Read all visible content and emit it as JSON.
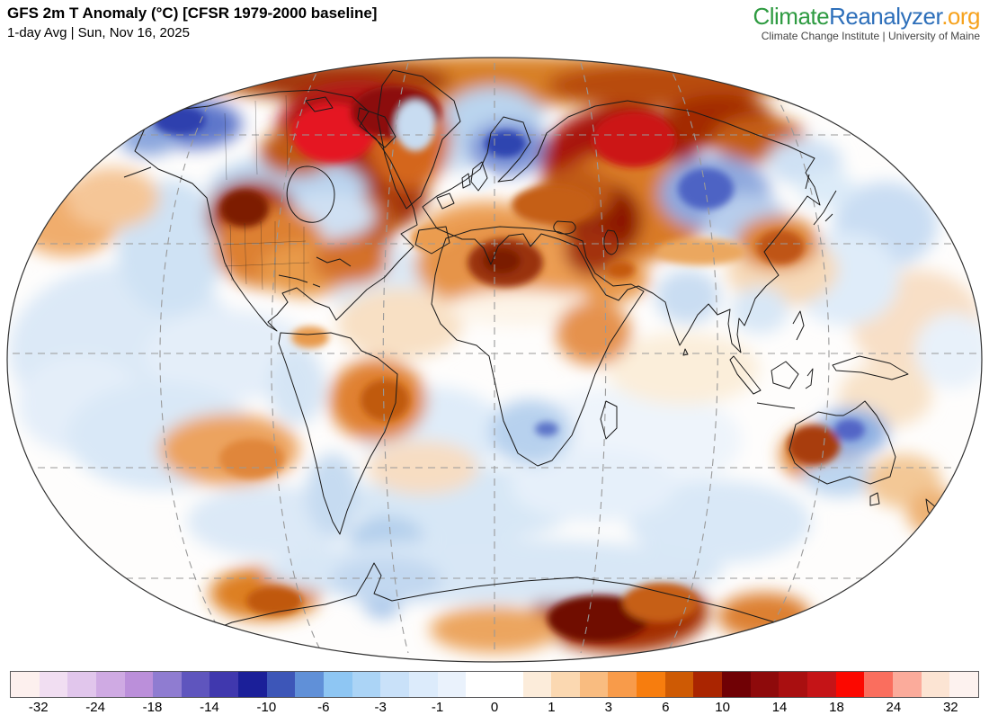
{
  "header": {
    "title": "GFS 2m T Anomaly (°C) [CFSR 1979-2000 baseline]",
    "subtitle": "1-day Avg | Sun, Nov 16, 2025"
  },
  "logo": {
    "part1": "Climate",
    "part2": "Reanalyzer",
    "part3": ".org",
    "color1": "#2e9b41",
    "color2": "#2d6fba",
    "color3": "#f6a21d",
    "tagline": "Climate Change Institute | University of Maine"
  },
  "colorbar": {
    "units": "°C",
    "ticks": [
      "-32",
      "-24",
      "-18",
      "-14",
      "-10",
      "-6",
      "-3",
      "-1",
      "0",
      "1",
      "3",
      "6",
      "10",
      "14",
      "18",
      "24",
      "32"
    ],
    "cells": [
      "#fdf0ee",
      "#f1def2",
      "#e1c6ec",
      "#cfaae3",
      "#bb8fda",
      "#8f7cd1",
      "#5f55be",
      "#4038ae",
      "#1b1f99",
      "#3d56b8",
      "#6090d8",
      "#8ec6f3",
      "#abd4f6",
      "#c9e1f9",
      "#dcebfb",
      "#eaf2fc",
      "#ffffff",
      "#ffffff",
      "#fcecda",
      "#fbd8b1",
      "#f9bc80",
      "#f89b4a",
      "#f77d0e",
      "#ce5a04",
      "#aa2501",
      "#700105",
      "#8e0a0b",
      "#a90f10",
      "#c51417",
      "#fc0800",
      "#fa6e5e",
      "#fbab9b",
      "#fce4d3",
      "#fdf2ef"
    ]
  },
  "map": {
    "grid_color": "#999999",
    "coast_color": "#1a1a1a",
    "parallels": [
      90,
      211,
      333,
      460,
      583
    ],
    "meridians": [
      {
        "xe": 550,
        "xt": 550
      },
      {
        "xe": 417,
        "xt": 454
      },
      {
        "xe": 283,
        "xt": 358
      },
      {
        "xe": 150,
        "xt": 262
      },
      {
        "xe": 683,
        "xt": 646
      },
      {
        "xe": 817,
        "xt": 742
      },
      {
        "xe": 950,
        "xt": 838
      }
    ],
    "blobs_soft": [
      [
        140,
        330,
        130,
        95,
        "#dce9f7"
      ],
      [
        90,
        390,
        70,
        55,
        "#e4eef9"
      ],
      [
        190,
        215,
        60,
        75,
        "#cfe2f4"
      ],
      [
        75,
        185,
        58,
        40,
        "#f0ad6d"
      ],
      [
        125,
        160,
        52,
        34,
        "#f5c697"
      ],
      [
        255,
        335,
        95,
        50,
        "#e4eef9"
      ],
      [
        180,
        425,
        105,
        60,
        "#d9e8f7"
      ],
      [
        420,
        250,
        62,
        40,
        "#dce9f6"
      ],
      [
        445,
        300,
        70,
        40,
        "#f8e0c4"
      ],
      [
        505,
        95,
        45,
        35,
        "#c8ddf2"
      ],
      [
        548,
        60,
        60,
        30,
        "#cfe2f5"
      ],
      [
        700,
        430,
        125,
        60,
        "#eef4fb"
      ],
      [
        760,
        350,
        85,
        40,
        "#fbeeda"
      ],
      [
        1020,
        300,
        72,
        60,
        "#f8dfc6"
      ],
      [
        985,
        190,
        58,
        48,
        "#c9ddf3"
      ],
      [
        940,
        250,
        60,
        52,
        "#dfecf9"
      ],
      [
        1060,
        330,
        42,
        42,
        "#e8f1fa"
      ],
      [
        870,
        240,
        62,
        40,
        "#f6d9b8"
      ],
      [
        480,
        420,
        82,
        50,
        "#dfecf9"
      ],
      [
        520,
        500,
        125,
        42,
        "#d7e7f6"
      ],
      [
        300,
        520,
        92,
        40,
        "#dce9f7"
      ],
      [
        800,
        520,
        102,
        46,
        "#d9e8f7"
      ],
      [
        660,
        480,
        92,
        40,
        "#e6f0fa"
      ],
      [
        985,
        380,
        52,
        36,
        "#f8e2c8"
      ],
      [
        560,
        30,
        345,
        28,
        "#d88027"
      ],
      [
        380,
        30,
        122,
        22,
        "#a33708"
      ],
      [
        730,
        35,
        122,
        26,
        "#b84c0e"
      ],
      [
        548,
        75,
        56,
        38,
        "#bad4ee"
      ],
      [
        395,
        85,
        88,
        56,
        "#b31616"
      ],
      [
        430,
        150,
        46,
        46,
        "#a33008"
      ],
      [
        405,
        190,
        36,
        36,
        "#c05a16"
      ],
      [
        215,
        78,
        54,
        27,
        "#5d76ca"
      ],
      [
        165,
        95,
        32,
        18,
        "#8aa6dd"
      ],
      [
        320,
        150,
        88,
        36,
        "#b9d3ee"
      ],
      [
        365,
        180,
        52,
        26,
        "#cfe0f3"
      ],
      [
        280,
        180,
        50,
        40,
        "#a93508"
      ],
      [
        300,
        215,
        62,
        46,
        "#dd8030"
      ],
      [
        340,
        240,
        52,
        30,
        "#e89a4a"
      ],
      [
        390,
        230,
        42,
        26,
        "#d4712a"
      ],
      [
        455,
        95,
        46,
        56,
        "#d4661b"
      ],
      [
        330,
        110,
        42,
        26,
        "#c05a14"
      ],
      [
        565,
        105,
        44,
        30,
        "#7b93d6"
      ],
      [
        540,
        200,
        72,
        36,
        "#eda159"
      ],
      [
        560,
        235,
        98,
        50,
        "#e6944a"
      ],
      [
        630,
        230,
        52,
        28,
        "#ec9e52"
      ],
      [
        580,
        282,
        82,
        20,
        "#fdf4e8"
      ],
      [
        660,
        310,
        42,
        36,
        "#e5924d"
      ],
      [
        680,
        250,
        42,
        26,
        "#e8964a"
      ],
      [
        690,
        120,
        88,
        62,
        "#a81708"
      ],
      [
        700,
        170,
        92,
        62,
        "#d97a28"
      ],
      [
        672,
        185,
        42,
        42,
        "#8c1505"
      ],
      [
        660,
        220,
        32,
        26,
        "#a33008"
      ],
      [
        640,
        155,
        42,
        30,
        "#c05a14"
      ],
      [
        800,
        75,
        62,
        30,
        "#a32a06"
      ],
      [
        845,
        95,
        52,
        26,
        "#c55f14"
      ],
      [
        895,
        120,
        42,
        26,
        "#cfe1f4"
      ],
      [
        920,
        150,
        32,
        20,
        "#dcebf8"
      ],
      [
        795,
        155,
        62,
        42,
        "#8fa9de"
      ],
      [
        830,
        185,
        46,
        30,
        "#b7cdec"
      ],
      [
        865,
        210,
        46,
        30,
        "#dd8335"
      ],
      [
        765,
        270,
        36,
        30,
        "#c9ddf2"
      ],
      [
        845,
        285,
        32,
        26,
        "#d8e7f6"
      ],
      [
        420,
        385,
        54,
        46,
        "#e08130"
      ],
      [
        330,
        370,
        32,
        42,
        "#d5e5f5"
      ],
      [
        370,
        490,
        30,
        46,
        "#c6dbf1"
      ],
      [
        255,
        440,
        78,
        40,
        "#eca35f"
      ],
      [
        470,
        460,
        62,
        30,
        "#f7ddc2"
      ],
      [
        430,
        540,
        42,
        26,
        "#b3cfec"
      ],
      [
        590,
        420,
        46,
        36,
        "#b7d1ee"
      ],
      [
        912,
        445,
        44,
        32,
        "#dd7f2c"
      ],
      [
        948,
        420,
        40,
        27,
        "#8fb0e2"
      ],
      [
        935,
        470,
        42,
        22,
        "#bdd6f0"
      ],
      [
        1005,
        475,
        42,
        30,
        "#f3c896"
      ],
      [
        1040,
        510,
        32,
        26,
        "#eeb275"
      ],
      [
        295,
        600,
        62,
        30,
        "#dd7f24"
      ],
      [
        425,
        600,
        24,
        28,
        "#a6c4e9"
      ],
      [
        690,
        620,
        98,
        46,
        "#a42f06"
      ],
      [
        850,
        625,
        52,
        26,
        "#dd8030"
      ],
      [
        550,
        640,
        72,
        26,
        "#eca55f"
      ],
      [
        550,
        575,
        255,
        36,
        "#d8e7f6"
      ],
      [
        430,
        585,
        62,
        26,
        "#c2d8f0"
      ]
    ],
    "blobs_sharp": [
      [
        370,
        88,
        46,
        33,
        "#e51420"
      ],
      [
        440,
        65,
        50,
        30,
        "#8c0f08"
      ],
      [
        200,
        74,
        29,
        16,
        "#2e41ae"
      ],
      [
        272,
        172,
        27,
        21,
        "#7d1f04"
      ],
      [
        462,
        80,
        22,
        28,
        "#c8dcf1"
      ],
      [
        562,
        100,
        23,
        15,
        "#2f44b0"
      ],
      [
        532,
        140,
        18,
        12,
        "#e8f1fa"
      ],
      [
        615,
        168,
        46,
        22,
        "#c55f12"
      ],
      [
        482,
        205,
        26,
        15,
        "#eb9c50"
      ],
      [
        562,
        232,
        42,
        27,
        "#993008"
      ],
      [
        558,
        230,
        21,
        14,
        "#7a1c06"
      ],
      [
        690,
        240,
        16,
        10,
        "#c55a10"
      ],
      [
        705,
        95,
        46,
        31,
        "#cc1315"
      ],
      [
        785,
        150,
        31,
        23,
        "#4e63c4"
      ],
      [
        868,
        215,
        26,
        19,
        "#bf5512"
      ],
      [
        780,
        220,
        50,
        15,
        "#eba75f"
      ],
      [
        428,
        385,
        27,
        23,
        "#c05a0e"
      ],
      [
        345,
        315,
        21,
        12,
        "#e89a4c"
      ],
      [
        280,
        450,
        36,
        22,
        "#e0863a"
      ],
      [
        608,
        417,
        13,
        8,
        "#5c73c8"
      ],
      [
        905,
        435,
        29,
        22,
        "#a83c08"
      ],
      [
        945,
        418,
        17,
        12,
        "#5265c6"
      ],
      [
        305,
        608,
        31,
        16,
        "#c05808"
      ],
      [
        665,
        628,
        56,
        26,
        "#701004"
      ],
      [
        735,
        610,
        42,
        22,
        "#c65f12"
      ]
    ]
  }
}
